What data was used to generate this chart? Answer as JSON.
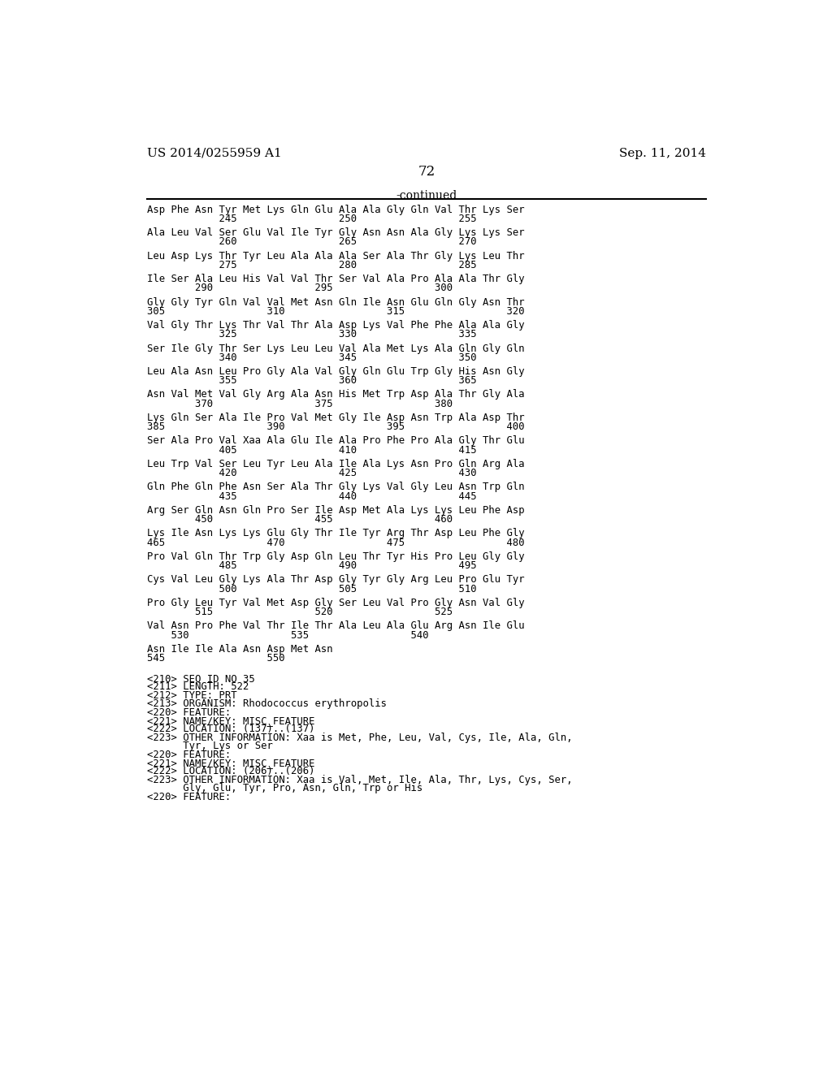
{
  "header_left": "US 2014/0255959 A1",
  "header_right": "Sep. 11, 2014",
  "page_number": "72",
  "continued_text": "-continued",
  "background_color": "#ffffff",
  "text_color": "#000000",
  "sequence_blocks": [
    [
      "Asp Phe Asn Tyr Met Lys Gln Glu Ala Ala Gly Gln Val Thr Lys Ser",
      "            245                 250                 255"
    ],
    [
      "Ala Leu Val Ser Glu Val Ile Tyr Gly Asn Asn Ala Gly Lys Lys Ser",
      "            260                 265                 270"
    ],
    [
      "Leu Asp Lys Thr Tyr Leu Ala Ala Ala Ser Ala Thr Gly Lys Leu Thr",
      "            275                 280                 285"
    ],
    [
      "Ile Ser Ala Leu His Val Val Thr Ser Val Ala Pro Ala Ala Thr Gly",
      "        290                 295                 300"
    ],
    [
      "Gly Gly Tyr Gln Val Val Met Asn Gln Ile Asn Glu Gln Gly Asn Thr",
      "305                 310                 315                 320"
    ],
    [
      "Val Gly Thr Lys Thr Val Thr Ala Asp Lys Val Phe Phe Ala Ala Gly",
      "            325                 330                 335"
    ],
    [
      "Ser Ile Gly Thr Ser Lys Leu Leu Val Ala Met Lys Ala Gln Gly Gln",
      "            340                 345                 350"
    ],
    [
      "Leu Ala Asn Leu Pro Gly Ala Val Gly Gln Glu Trp Gly His Asn Gly",
      "            355                 360                 365"
    ],
    [
      "Asn Val Met Val Gly Arg Ala Asn His Met Trp Asp Ala Thr Gly Ala",
      "        370                 375                 380"
    ],
    [
      "Lys Gln Ser Ala Ile Pro Val Met Gly Ile Asp Asn Trp Ala Asp Thr",
      "385                 390                 395                 400"
    ],
    [
      "Ser Ala Pro Val Xaa Ala Glu Ile Ala Pro Phe Pro Ala Gly Thr Glu",
      "            405                 410                 415"
    ],
    [
      "Leu Trp Val Ser Leu Tyr Leu Ala Ile Ala Lys Asn Pro Gln Arg Ala",
      "            420                 425                 430"
    ],
    [
      "Gln Phe Gln Phe Asn Ser Ala Thr Gly Lys Val Gly Leu Asn Trp Gln",
      "            435                 440                 445"
    ],
    [
      "Arg Ser Gln Asn Gln Pro Ser Ile Asp Met Ala Lys Lys Leu Phe Asp",
      "        450                 455                 460"
    ],
    [
      "Lys Ile Asn Lys Lys Glu Gly Thr Ile Tyr Arg Thr Asp Leu Phe Gly",
      "465                 470                 475                 480"
    ],
    [
      "Pro Val Gln Thr Trp Gly Asp Gln Leu Thr Tyr His Pro Leu Gly Gly",
      "            485                 490                 495"
    ],
    [
      "Cys Val Leu Gly Lys Ala Thr Asp Gly Tyr Gly Arg Leu Pro Glu Tyr",
      "            500                 505                 510"
    ],
    [
      "Pro Gly Leu Tyr Val Met Asp Gly Ser Leu Val Pro Gly Asn Val Gly",
      "        515                 520                 525"
    ],
    [
      "Val Asn Pro Phe Val Thr Ile Thr Ala Leu Ala Glu Arg Asn Ile Glu",
      "    530                 535                 540"
    ],
    [
      "Asn Ile Ile Ala Asn Asp Met Asn",
      "545                 550"
    ]
  ],
  "metadata_lines": [
    "<210> SEQ ID NO 35",
    "<211> LENGTH: 522",
    "<212> TYPE: PRT",
    "<213> ORGANISM: Rhodococcus erythropolis",
    "<220> FEATURE:",
    "<221> NAME/KEY: MISC_FEATURE",
    "<222> LOCATION: (137)..(137)",
    "<223> OTHER INFORMATION: Xaa is Met, Phe, Leu, Val, Cys, Ile, Ala, Gln,",
    "      Tyr, Lys or Ser",
    "<220> FEATURE:",
    "<221> NAME/KEY: MISC_FEATURE",
    "<222> LOCATION: (206)..(206)",
    "<223> OTHER INFORMATION: Xaa is Val, Met, Ile, Ala, Thr, Lys, Cys, Ser,",
    "      Gly, Glu, Tyr, Pro, Asn, Gln, Trp or His",
    "<220> FEATURE:"
  ]
}
